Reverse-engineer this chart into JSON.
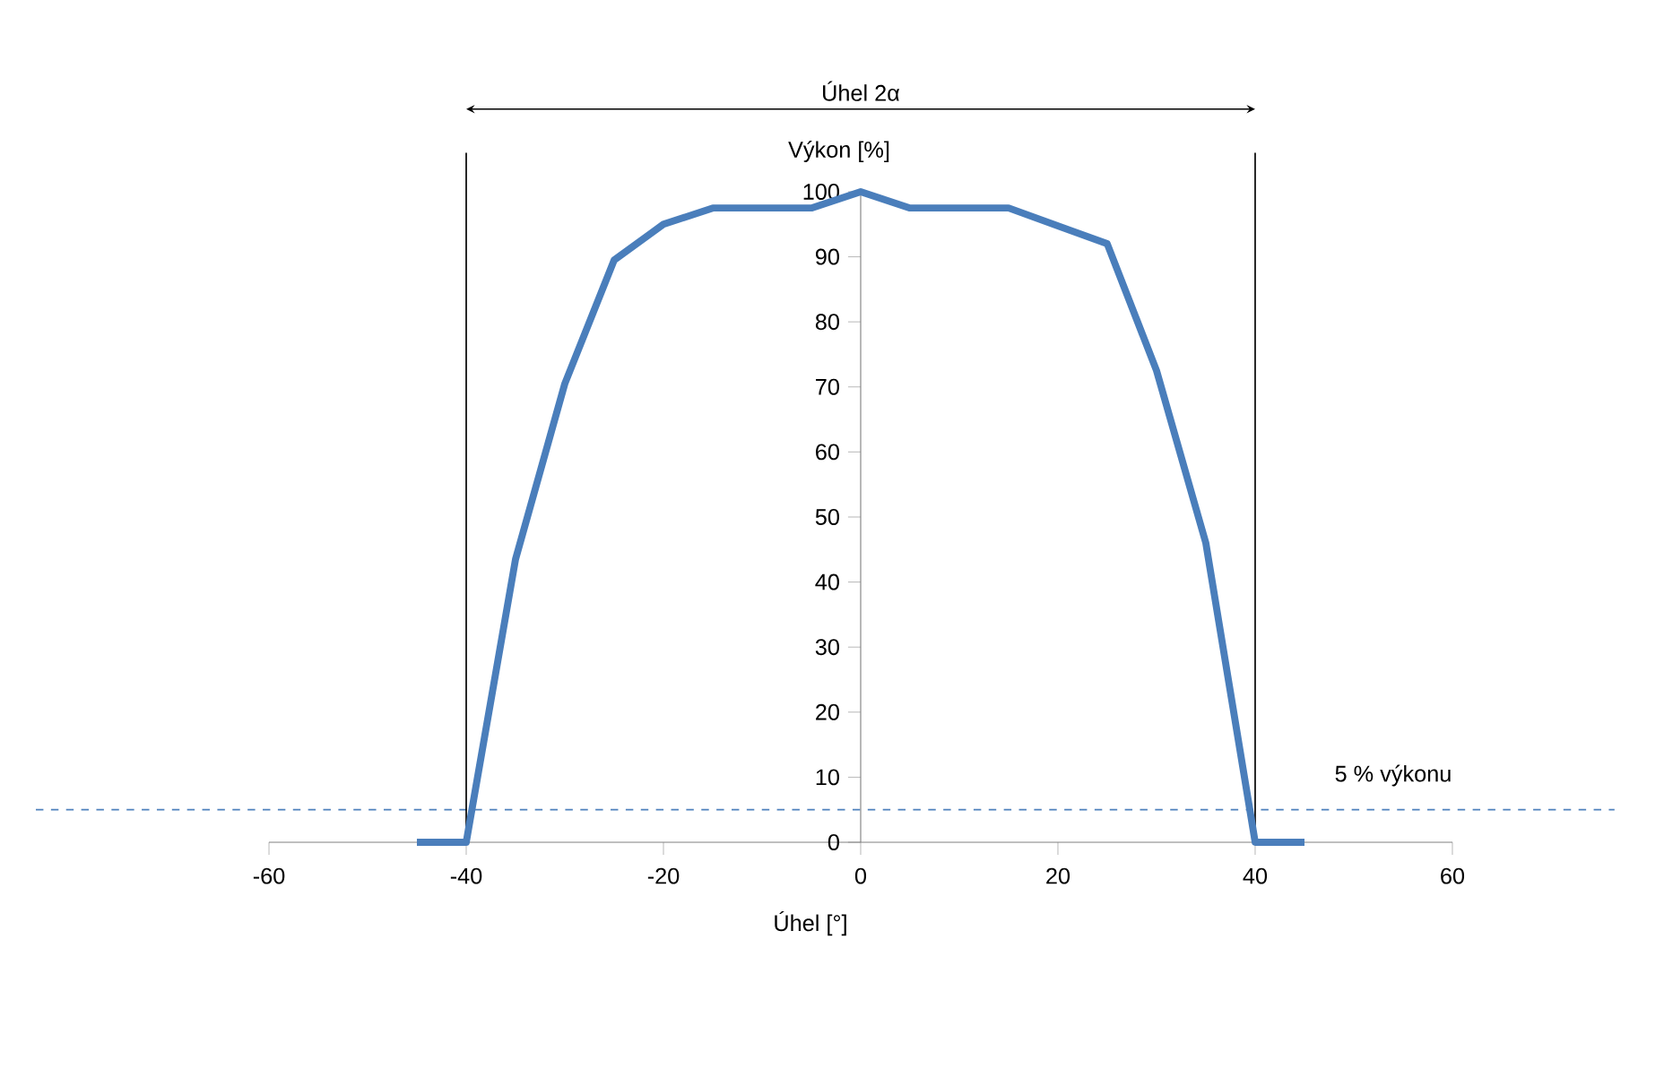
{
  "chart_data": {
    "type": "line",
    "xlabel": "Úhel [°]",
    "ylabel": "Výkon [%]",
    "x": [
      -45,
      -40,
      -35,
      -30,
      -25,
      -20,
      -15,
      -5,
      0,
      5,
      15,
      25,
      30,
      35,
      40,
      45
    ],
    "series": [
      {
        "color": "#4a7ebb",
        "values": [
          0,
          0,
          43.5,
          70.5,
          89.5,
          95,
          97.5,
          97.5,
          100,
          97.5,
          97.5,
          92,
          72.5,
          46,
          0,
          0
        ]
      }
    ],
    "xlim": [
      -60,
      60
    ],
    "ylim": [
      0,
      100
    ],
    "xticks": [
      -60,
      -40,
      -20,
      0,
      20,
      40,
      60
    ],
    "yticks": [
      0,
      10,
      20,
      30,
      40,
      50,
      60,
      70,
      80,
      90,
      100
    ],
    "ref_lines": [
      {
        "axis": "y",
        "value": 5,
        "label": "5 % výkonu",
        "color": "#4f81bd",
        "line_style": "dashed"
      },
      {
        "axis": "x",
        "value": -40,
        "color": "#000000"
      },
      {
        "axis": "x",
        "value": 40,
        "color": "#000000"
      }
    ],
    "annotations": [
      "Úhel 2α"
    ]
  }
}
